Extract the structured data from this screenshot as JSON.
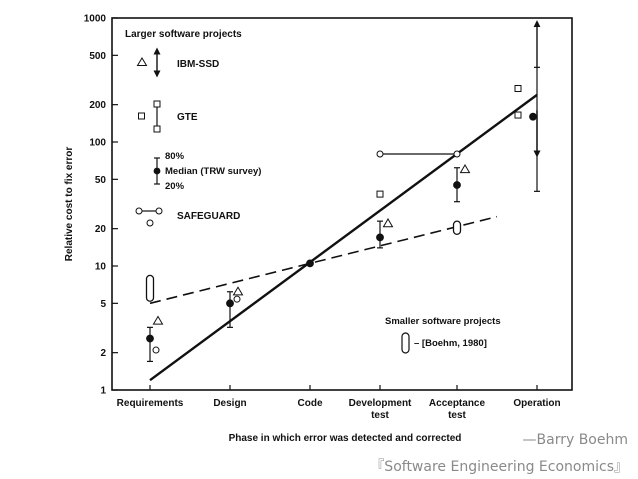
{
  "chart_data": {
    "type": "scatter",
    "ylabel": "Relative cost to fix error",
    "xlabel": "Phase in which error was detected and corrected",
    "y_scale": "log",
    "ylim": [
      1,
      1000
    ],
    "y_ticks": [
      1,
      2,
      5,
      10,
      20,
      50,
      100,
      200,
      500,
      1000
    ],
    "categories": [
      "Requirements",
      "Design",
      "Code",
      "Development\ntest",
      "Acceptance\ntest",
      "Operation"
    ],
    "trend_lines": [
      {
        "name": "Larger software projects",
        "style": "solid",
        "x": [
          0,
          5
        ],
        "y": [
          1.2,
          240
        ]
      },
      {
        "name": "Smaller software projects",
        "style": "dashed",
        "x": [
          0,
          4.5
        ],
        "y": [
          5,
          25
        ]
      }
    ],
    "median": {
      "x": [
        0,
        1,
        2,
        3,
        4,
        5
      ],
      "y": [
        2.6,
        5,
        10.5,
        17,
        45,
        160
      ]
    },
    "range_80_20": [
      {
        "x": 0,
        "low": 1.7,
        "high": 3.2
      },
      {
        "x": 1,
        "low": 3.2,
        "high": 6.2
      },
      {
        "x": 2,
        "low": 10.5,
        "high": 10.5
      },
      {
        "x": 3,
        "low": 14,
        "high": 23
      },
      {
        "x": 4,
        "low": 33,
        "high": 62
      },
      {
        "x": 5,
        "low": 40,
        "high": 400
      }
    ],
    "ibm_ssd": [
      {
        "x": 0,
        "y": 3.6
      },
      {
        "x": 1,
        "y": 6.2
      },
      {
        "x": 3,
        "y": 22
      },
      {
        "x": 4,
        "y": 60
      },
      {
        "x": 5,
        "y": 700
      }
    ],
    "gte": [
      {
        "x": 3,
        "y": 38
      },
      {
        "x": 5,
        "y": 270
      },
      {
        "x": 5,
        "y": 165
      }
    ],
    "safeguard": [
      {
        "x": 0,
        "y": 2.1
      },
      {
        "x": 1,
        "y": 5.4
      },
      {
        "x": 3,
        "y": 80
      },
      {
        "x": 4,
        "y": 80
      }
    ],
    "boehm_1980": [
      {
        "x": 0,
        "low": 5.2,
        "high": 8.4
      },
      {
        "x": 4,
        "low": 18,
        "high": 23
      }
    ],
    "legend_top": {
      "title": "Larger software projects",
      "ibm": "IBM-SSD",
      "gte": "GTE",
      "p80": "80%",
      "median": "Median (TRW survey)",
      "p20": "20%",
      "safeguard": "SAFEGUARD"
    },
    "legend_bottom": {
      "title": "Smaller software projects",
      "boehm": "– [Boehm, 1980]"
    }
  },
  "caption": {
    "author": "—Barry Boehm",
    "book": "『Software Engineering Economics』"
  }
}
